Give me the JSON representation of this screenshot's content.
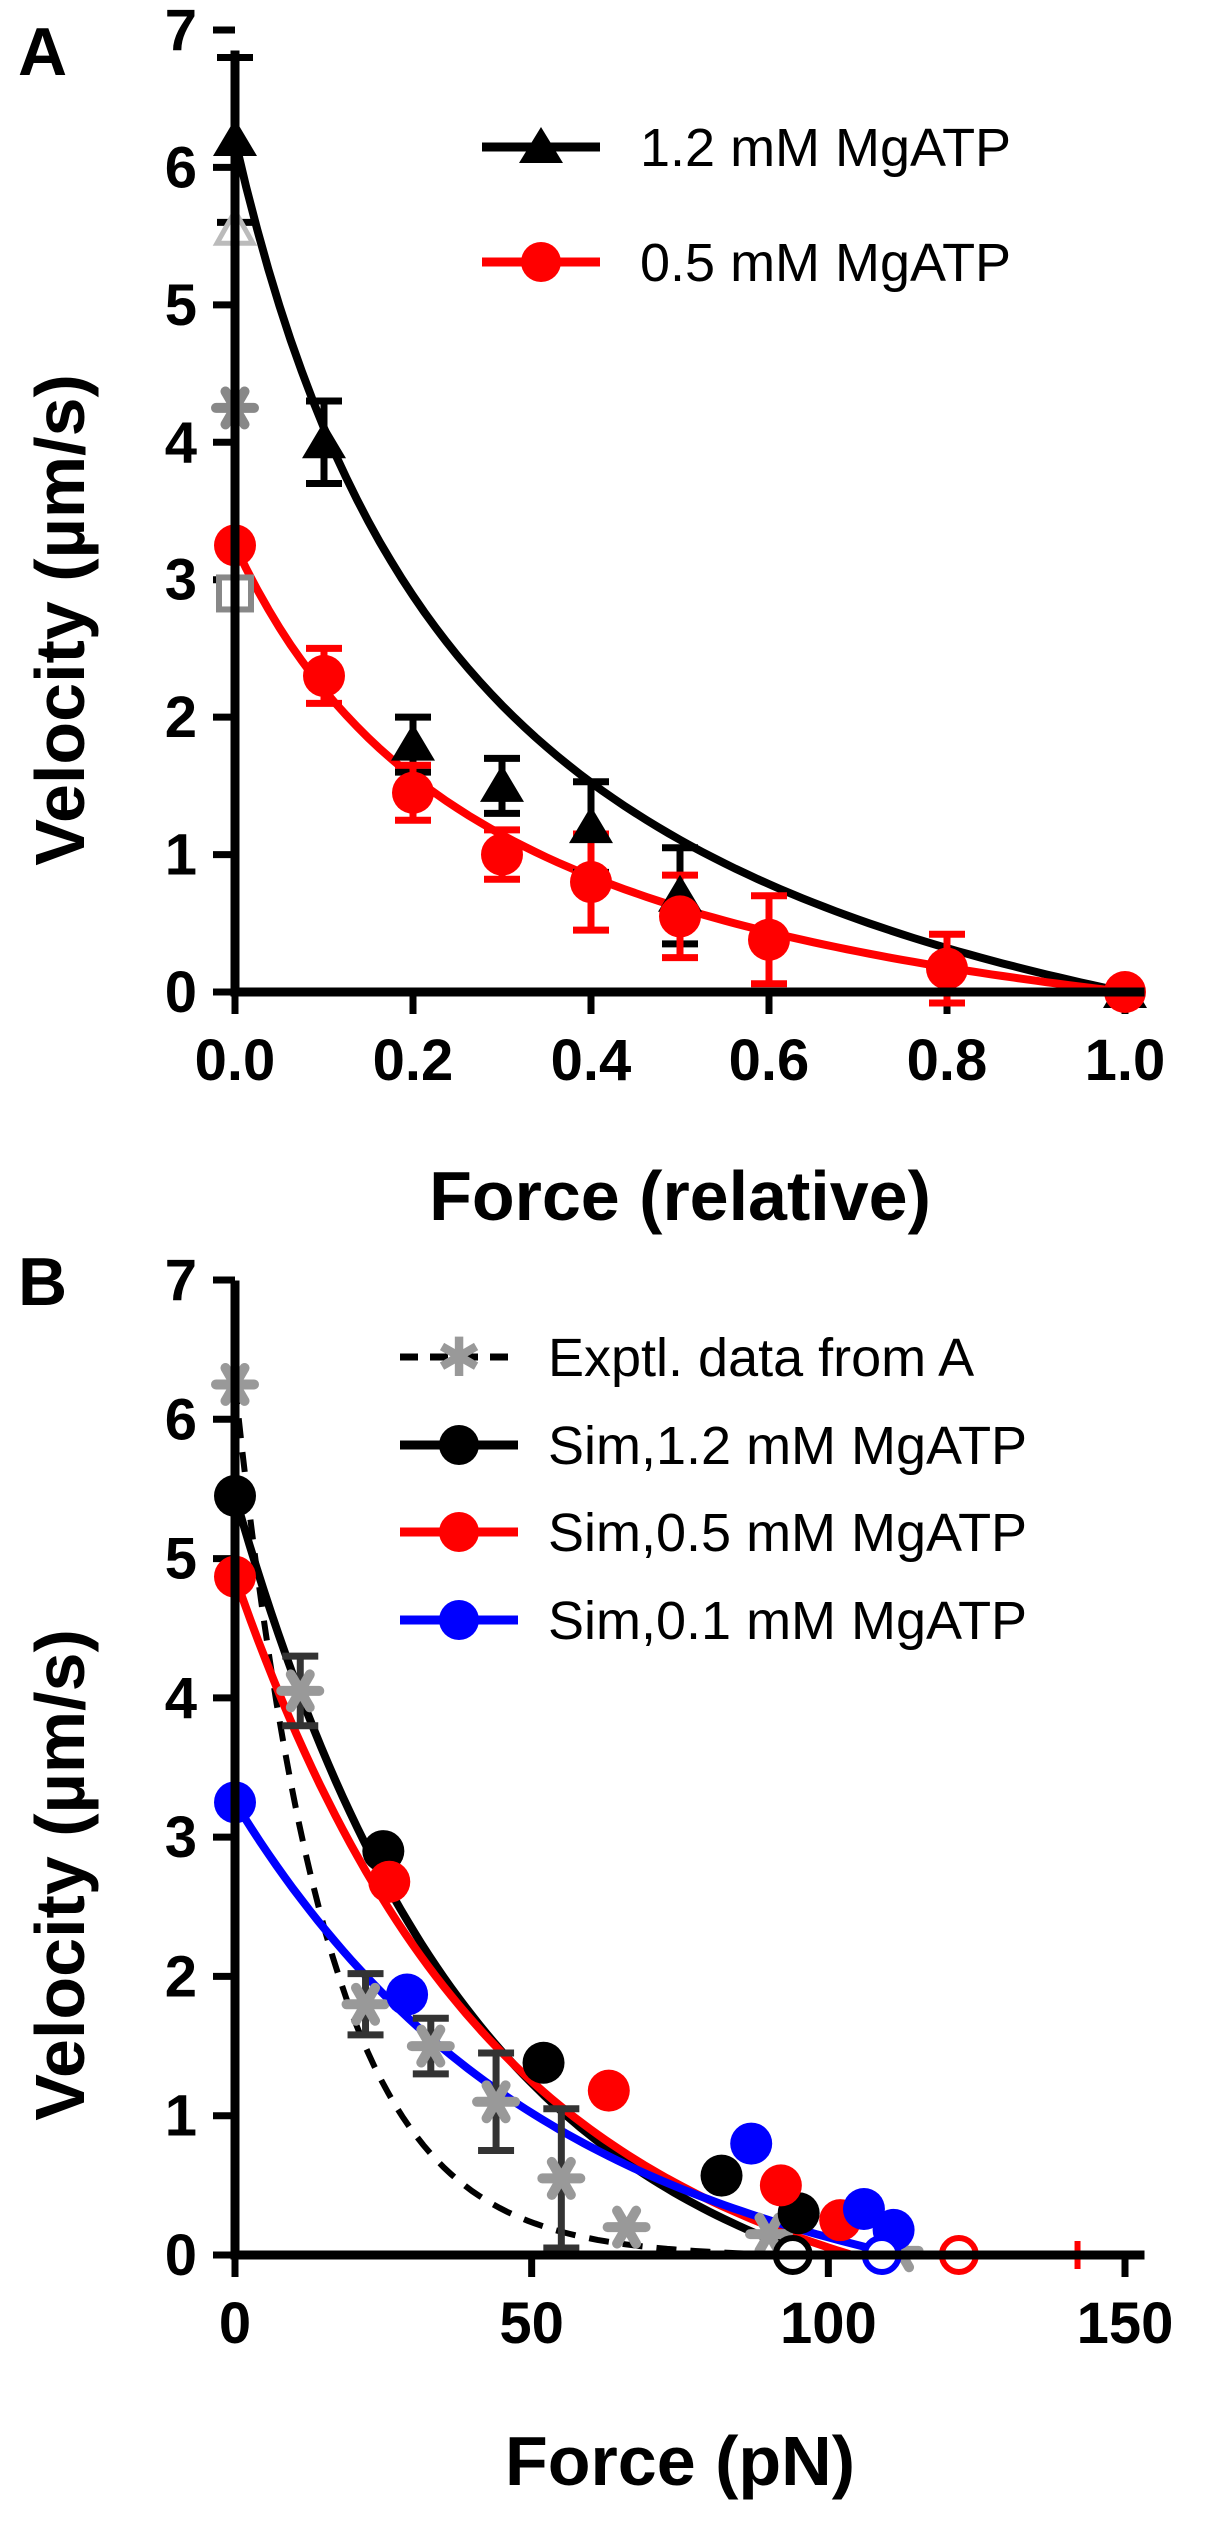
{
  "chart_data": [
    {
      "panel": "A",
      "type": "line",
      "xlabel": "Force (relative)",
      "ylabel": "Velocity (µm/s)",
      "xlim": [
        0,
        1.0
      ],
      "ylim": [
        0,
        7
      ],
      "xticks": [
        "0.0",
        "0.2",
        "0.4",
        "0.6",
        "0.8",
        "1.0"
      ],
      "xtick_values": [
        0,
        0.2,
        0.4,
        0.6,
        0.8,
        1.0
      ],
      "yticks": [
        "0",
        "1",
        "2",
        "3",
        "4",
        "5",
        "6",
        "7"
      ],
      "ytick_values": [
        0,
        1,
        2,
        3,
        4,
        5,
        6,
        7
      ],
      "legend_position": "top-right",
      "series": [
        {
          "name": "1.2 mM MgATP",
          "color": "#000000",
          "marker": "triangle",
          "x": [
            0.0,
            0.1,
            0.2,
            0.3,
            0.4,
            0.5,
            1.0
          ],
          "y": [
            6.2,
            4.0,
            1.8,
            1.5,
            1.2,
            0.7,
            0.0
          ],
          "err": [
            0.6,
            0.3,
            0.2,
            0.2,
            0.33,
            0.35,
            0.0
          ],
          "fit": {
            "v0": 6.2,
            "k": 3.6
          }
        },
        {
          "name": "0.5 mM MgATP",
          "color": "#ff0000",
          "marker": "circle",
          "x": [
            0.0,
            0.1,
            0.2,
            0.3,
            0.4,
            0.5,
            0.6,
            0.8,
            1.0
          ],
          "y": [
            3.25,
            2.3,
            1.45,
            1.0,
            0.8,
            0.55,
            0.38,
            0.17,
            0.0
          ],
          "err": [
            0.0,
            0.2,
            0.2,
            0.18,
            0.35,
            0.3,
            0.32,
            0.25,
            0.0
          ],
          "fit": {
            "v0": 3.25,
            "k": 3.3
          }
        }
      ],
      "extra_points": [
        {
          "marker": "open-triangle",
          "color": "#bbbbbb",
          "x": 0.0,
          "y": 5.55
        },
        {
          "marker": "star",
          "color": "#888888",
          "x": 0.0,
          "y": 4.25
        },
        {
          "marker": "open-square",
          "color": "#888888",
          "x": 0.0,
          "y": 2.9
        }
      ]
    },
    {
      "panel": "B",
      "type": "line",
      "xlabel": "Force (pN)",
      "ylabel": "Velocity (µm/s)",
      "xlim": [
        0,
        150
      ],
      "ylim": [
        0,
        7
      ],
      "xticks": [
        "0",
        "50",
        "100",
        "150"
      ],
      "xtick_values": [
        0,
        50,
        100,
        150
      ],
      "yticks": [
        "0",
        "1",
        "2",
        "3",
        "4",
        "5",
        "6",
        "7"
      ],
      "ytick_values": [
        0,
        1,
        2,
        3,
        4,
        5,
        6,
        7
      ],
      "legend_position": "top-right",
      "series": [
        {
          "name": "Exptl. data from A",
          "color": "#999999",
          "line_color": "#000000",
          "line_style": "dashed",
          "marker": "star",
          "x": [
            0,
            11,
            22,
            33,
            44,
            55,
            66,
            90,
            112
          ],
          "y": [
            6.25,
            4.05,
            1.8,
            1.5,
            1.1,
            0.55,
            0.2,
            0.15,
            0.03
          ],
          "err": [
            0.0,
            0.25,
            0.22,
            0.2,
            0.35,
            0.5,
            0.0,
            0.0,
            0.0
          ],
          "fit": {
            "v0": 6.25,
            "k": 0.065,
            "x_end": 94
          }
        },
        {
          "name": "Sim,1.2 mM MgATP",
          "color": "#000000",
          "marker": "circle",
          "x": [
            0,
            25,
            52,
            82,
            95
          ],
          "y": [
            5.45,
            2.9,
            1.38,
            0.57,
            0.3
          ],
          "fit": {
            "v0": 5.45,
            "k": 0.0265,
            "x_end": 97
          },
          "x_intercept": 94
        },
        {
          "name": "Sim,0.5 mM MgATP",
          "color": "#ff0000",
          "marker": "circle",
          "x": [
            0,
            26,
            63,
            92,
            102
          ],
          "y": [
            4.87,
            2.68,
            1.18,
            0.5,
            0.25
          ],
          "fit": {
            "v0": 4.87,
            "k": 0.0245,
            "x_end": 104
          },
          "x_intercept": 122,
          "x_intercept_err": 20
        },
        {
          "name": "Sim,0.1 mM MgATP",
          "color": "#0000ff",
          "marker": "circle",
          "x": [
            0,
            29,
            87,
            106,
            111
          ],
          "y": [
            3.25,
            1.87,
            0.8,
            0.33,
            0.18
          ],
          "fit": {
            "v0": 3.25,
            "k": 0.0205,
            "x_end": 112
          },
          "x_intercept": 109
        }
      ]
    }
  ]
}
